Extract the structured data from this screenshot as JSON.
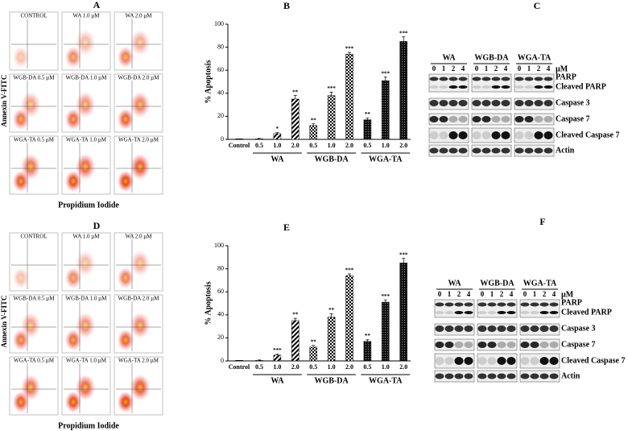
{
  "flow_panels": [
    {
      "label": "A",
      "y_label": "Annexin V-FITC",
      "x_label": "Propidium Iodide",
      "plots": [
        "CONTROL",
        "WA 1.0 µM",
        "WA 2.0 µM",
        "WGB-DA 0.5 µM",
        "WGB-DA 1.0 µM",
        "WGB-DA 2.0 µM",
        "WGA-TA 0.5 µM",
        "WGA-TA 1.0 µM",
        "WGA-TA 2.0 µM"
      ]
    },
    {
      "label": "D",
      "y_label": "Annexin V-FITC",
      "x_label": "Propidium Iodide",
      "plots": [
        "CONTROL",
        "WA 1.0 µM",
        "WA 2.0 µM",
        "WGB-DA 0.5 µM",
        "WGB-DA 1.0 µM",
        "WGB-DA 2.0 µM",
        "WGA-TA 0.5 µM",
        "WGA-TA 1.0 µM",
        "WGA-TA 2.0 µM"
      ]
    }
  ],
  "chart_data": [
    {
      "type": "bar",
      "label": "B",
      "y_label": "% Apoptosis",
      "ylim": [
        0,
        100
      ],
      "yticks": [
        0,
        20,
        40,
        60,
        80,
        100
      ],
      "control": {
        "name": "Control",
        "value": 0.5
      },
      "groups": [
        {
          "name": "WA",
          "pattern": "diagonal",
          "categories": [
            "0.5",
            "1.0",
            "2.0"
          ],
          "values": [
            0.5,
            5,
            35
          ],
          "errors": [
            0.3,
            1,
            3
          ],
          "significance": [
            null,
            "*",
            "**"
          ]
        },
        {
          "name": "WGB-DA",
          "pattern": "checker",
          "categories": [
            "0.5",
            "1.0",
            "2.0"
          ],
          "values": [
            12,
            38,
            74
          ],
          "errors": [
            1.5,
            3,
            1.5
          ],
          "significance": [
            "**",
            "***",
            "***"
          ]
        },
        {
          "name": "WGA-TA",
          "pattern": "dots",
          "categories": [
            "0.5",
            "1.0",
            "2.0"
          ],
          "values": [
            17,
            51,
            85
          ],
          "errors": [
            1.5,
            3,
            4
          ],
          "significance": [
            "**",
            "***",
            "***"
          ]
        }
      ]
    },
    {
      "type": "bar",
      "label": "E",
      "y_label": "% Apoptosis",
      "ylim": [
        0,
        100
      ],
      "yticks": [
        0,
        20,
        40,
        60,
        80,
        100
      ],
      "control": {
        "name": "Control",
        "value": 0.5
      },
      "groups": [
        {
          "name": "WA",
          "pattern": "diagonal",
          "categories": [
            "0.5",
            "1.0",
            "2.0"
          ],
          "values": [
            0.5,
            5,
            35
          ],
          "errors": [
            0.3,
            1,
            2
          ],
          "significance": [
            null,
            "***",
            "**"
          ]
        },
        {
          "name": "WGB-DA",
          "pattern": "checker",
          "categories": [
            "0.5",
            "1.0",
            "2.0"
          ],
          "values": [
            12,
            38,
            74
          ],
          "errors": [
            1.5,
            3,
            1.5
          ],
          "significance": [
            "**",
            "**",
            "***"
          ]
        },
        {
          "name": "WGA-TA",
          "pattern": "dots",
          "categories": [
            "0.5",
            "1.0",
            "2.0"
          ],
          "values": [
            17,
            51,
            85
          ],
          "errors": [
            1.5,
            2,
            4
          ],
          "significance": [
            "**",
            "***",
            "***"
          ]
        }
      ]
    }
  ],
  "blot_panels": [
    {
      "label": "C",
      "groups": [
        "WA",
        "WGB-DA",
        "WGA-TA"
      ],
      "lanes": [
        "0",
        "1",
        "2",
        "4"
      ],
      "unit": "µM",
      "proteins": [
        "PARP",
        "Cleaved PARP",
        "Caspase 3",
        "Caspase 7",
        "Cleaved Caspase 7",
        "Actin"
      ]
    },
    {
      "label": "F",
      "groups": [
        "WA",
        "WGB-DA",
        "WGA-TA"
      ],
      "lanes": [
        "0",
        "1",
        "2",
        "4"
      ],
      "unit": "µM",
      "proteins": [
        "PARP",
        "Cleaved PARP",
        "Caspase 3",
        "Caspase 7",
        "Cleaved Caspase 7",
        "Actin"
      ]
    }
  ]
}
